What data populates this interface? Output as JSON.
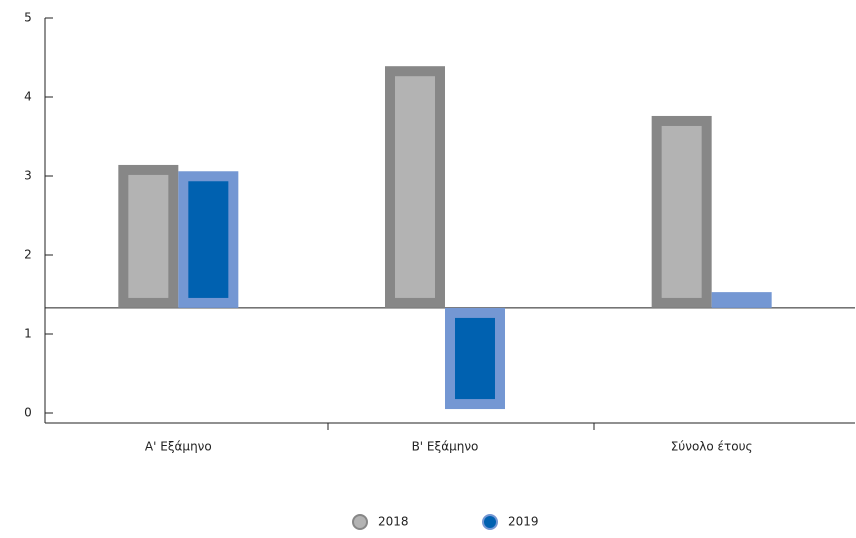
{
  "chart_data": {
    "type": "bar",
    "categories": [
      "Α' Εξάμηνο",
      "Β' Εξάμηνο",
      "Σύνολο έτους"
    ],
    "series": [
      {
        "name": "2018",
        "color": "#b3b3b3",
        "border": "#878787",
        "values": [
          3.14,
          4.39,
          3.76
        ]
      },
      {
        "name": "2019",
        "color": "#0061b0",
        "border": "#7497d3",
        "values": [
          3.06,
          0.05,
          1.53
        ]
      }
    ],
    "ylim": [
      0,
      5
    ],
    "yticks": [
      0,
      1,
      2,
      3,
      4,
      5
    ],
    "baseline": 1.33
  }
}
